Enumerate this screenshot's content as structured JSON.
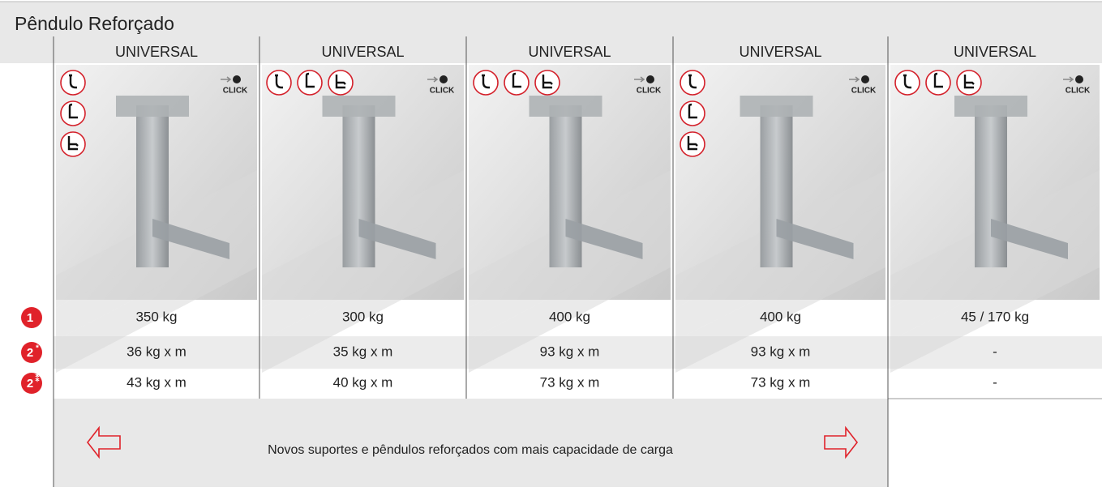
{
  "header": {
    "title": "Pêndulo Reforçado"
  },
  "table": {
    "columns": [
      {
        "label": "UNIVERSAL",
        "badge": "CLICK"
      },
      {
        "label": "UNIVERSAL",
        "badge": "CLICK"
      },
      {
        "label": "UNIVERSAL",
        "badge": "CLICK"
      },
      {
        "label": "UNIVERSAL",
        "badge": "CLICK"
      },
      {
        "label": "UNIVERSAL",
        "badge": "CLICK"
      }
    ],
    "row_badges": [
      {
        "number": "1"
      },
      {
        "number": "2",
        "sup": "*"
      },
      {
        "number": "2",
        "sup": "⁑"
      }
    ],
    "rows": [
      [
        "350 kg",
        "300 kg",
        "400 kg",
        "400 kg",
        "45 / 170 kg"
      ],
      [
        "36 kg x m",
        "35 kg x m",
        "93 kg x m",
        "93 kg x m",
        "-"
      ],
      [
        "43 kg x m",
        "40 kg x m",
        "73 kg x m",
        "73 kg x m",
        "-"
      ]
    ]
  },
  "footer": {
    "text": "Novos suportes e pêndulos reforçados com  mais capacidade de carga"
  }
}
